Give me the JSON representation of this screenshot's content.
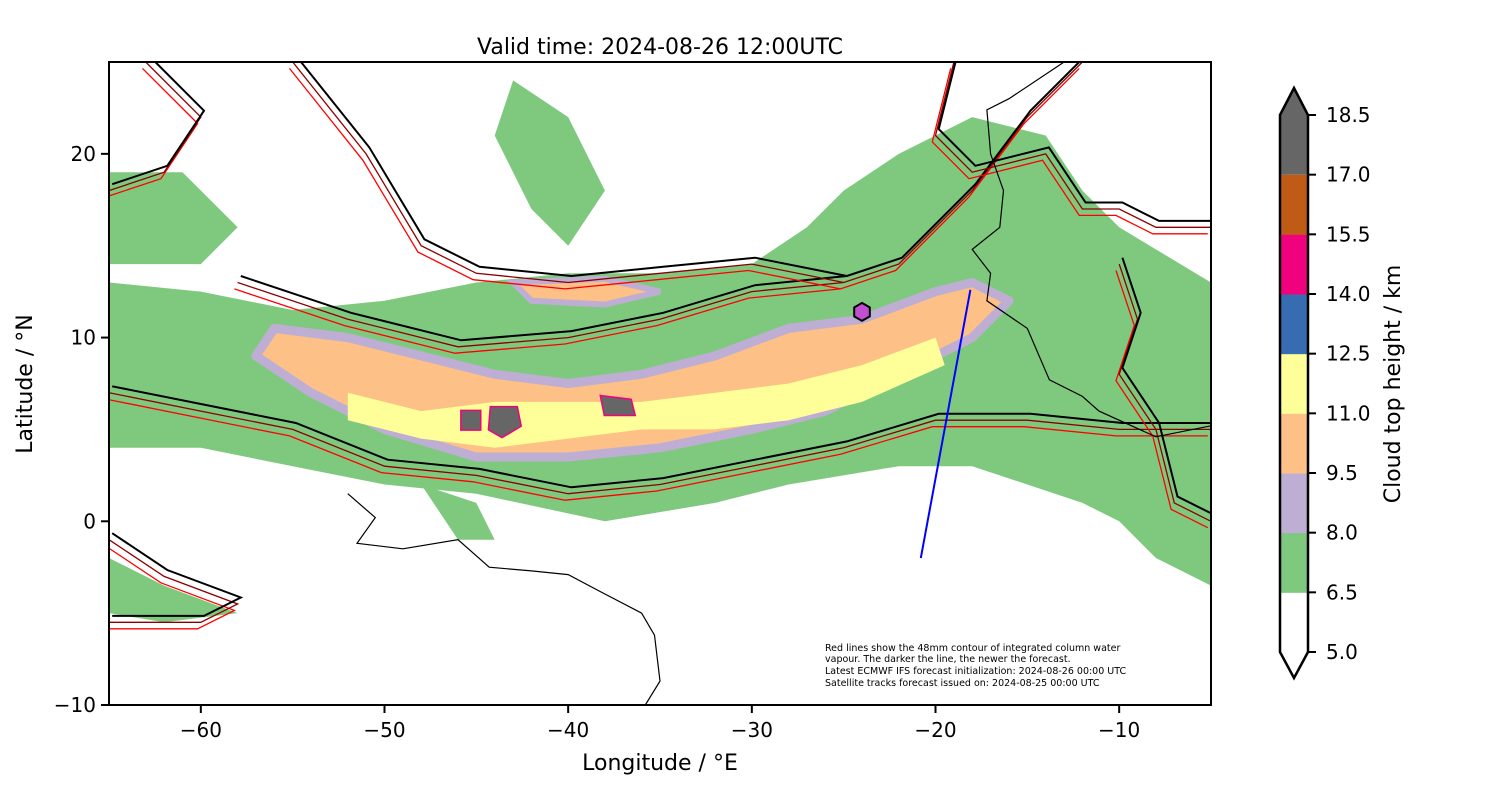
{
  "title": "Valid time: 2024-08-26 12:00UTC",
  "chart_data": {
    "type": "map",
    "xlabel": "Longitude / °E",
    "ylabel": "Latitude / °N",
    "xlim": [
      -65,
      -5
    ],
    "ylim": [
      -10,
      25
    ],
    "xticks": [
      -60,
      -50,
      -40,
      -30,
      -20,
      -10
    ],
    "xtick_labels": [
      "−60",
      "−50",
      "−40",
      "−30",
      "−20",
      "−10"
    ],
    "yticks": [
      -10,
      0,
      10,
      20
    ],
    "ytick_labels": [
      "−10",
      "0",
      "10",
      "20"
    ],
    "colorbar": {
      "label": "Cloud top height / km",
      "levels": [
        "5.0",
        "6.5",
        "8.0",
        "9.5",
        "11.0",
        "12.5",
        "14.0",
        "15.5",
        "17.0",
        "18.5"
      ],
      "colors": [
        "#ffffff",
        "#7fc97f",
        "#beaed4",
        "#fdc086",
        "#ffff99",
        "#386cb0",
        "#f0027f",
        "#bf5b17",
        "#666666"
      ],
      "extend": "both"
    },
    "satellite_track": {
      "color": "#0000ff",
      "points": [
        [
          -20.8,
          -2.0
        ],
        [
          -18.1,
          12.6
        ]
      ]
    },
    "marker": {
      "shape": "hexagon",
      "color": "#c050d0",
      "lon": -24.0,
      "lat": 11.4
    },
    "contour_colors": [
      "#ff0000",
      "#8b0000",
      "#000000"
    ]
  },
  "annotation": [
    "Red lines show the 48mm contour of integrated column water",
    "vapour. The darker the line, the newer the forecast.",
    "Latest ECMWF IFS forecast initialization: 2024-08-26 00:00 UTC",
    "Satellite tracks forecast issued on: 2024-08-25 00:00 UTC"
  ]
}
